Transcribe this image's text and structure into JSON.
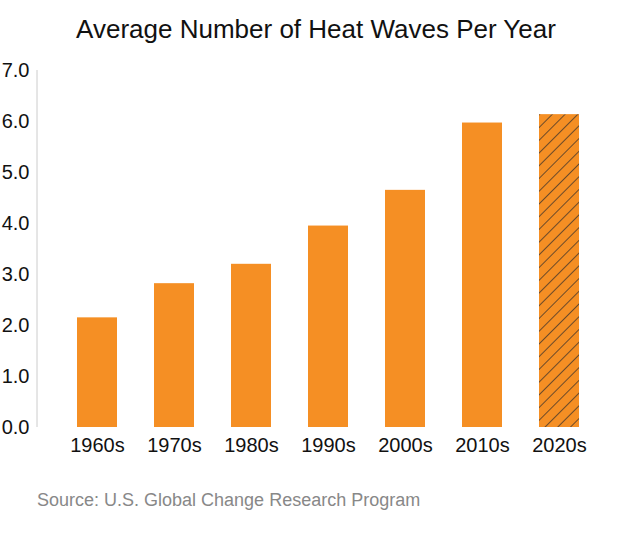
{
  "chart_data": {
    "type": "bar",
    "title": "Average Number of Heat Waves Per Year",
    "source": "Source: U.S. Global Change Research Program",
    "categories": [
      "1960s",
      "1970s",
      "1980s",
      "1990s",
      "2000s",
      "2010s",
      "2020s"
    ],
    "values": [
      2.15,
      2.82,
      3.2,
      3.95,
      4.65,
      5.97,
      6.13
    ],
    "color": "#f58f24",
    "ylim": [
      0,
      7
    ],
    "yticks": [
      0,
      1,
      2,
      3,
      4,
      5,
      6,
      7
    ],
    "grid": false
  }
}
